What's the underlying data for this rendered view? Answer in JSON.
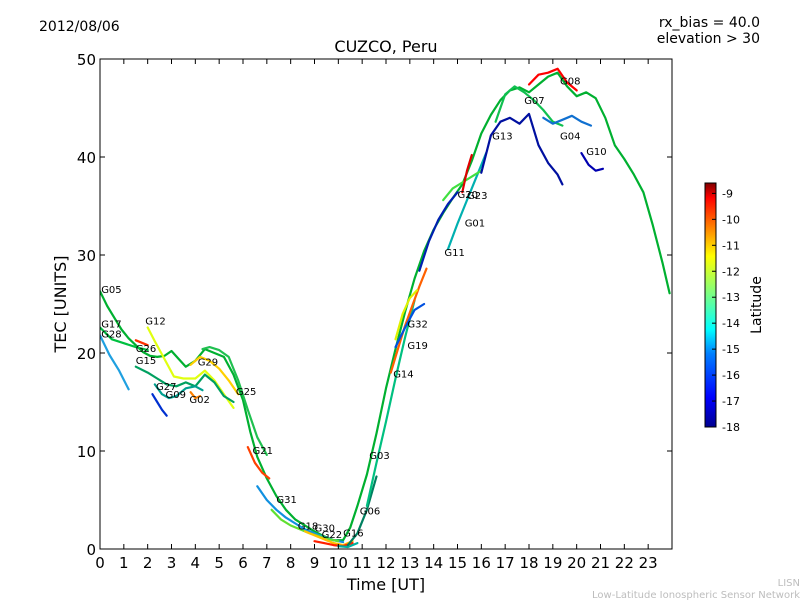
{
  "header": {
    "date": "2012/08/06",
    "bias_line": "rx_bias = 40.0",
    "elevation_line": "elevation > 30"
  },
  "watermark": {
    "short": "LISN",
    "long": "Low-Latitude Ionospheric Sensor Network"
  },
  "chart_data": {
    "type": "line",
    "title": "CUZCO, Peru",
    "xlabel": "Time [UT]",
    "ylabel": "TEC [UNITS]",
    "xlim": [
      0,
      24
    ],
    "ylim": [
      0,
      50
    ],
    "xticks": [
      "0",
      "1",
      "2",
      "3",
      "4",
      "5",
      "6",
      "7",
      "8",
      "9",
      "10",
      "11",
      "12",
      "13",
      "14",
      "15",
      "16",
      "17",
      "18",
      "19",
      "20",
      "21",
      "22",
      "23"
    ],
    "yticks": [
      "0",
      "10",
      "20",
      "30",
      "40",
      "50"
    ],
    "grid": false,
    "colorbar": {
      "label": "Latitude",
      "min": -18,
      "max": -8.6,
      "ticks": [
        "-9",
        "-10",
        "-11",
        "-12",
        "-13",
        "-14",
        "-15",
        "-16",
        "-17",
        "-18"
      ],
      "colors": [
        "#00008f",
        "#0000ff",
        "#007fff",
        "#00ffff",
        "#7fff7f",
        "#ffff00",
        "#ff7f00",
        "#ff0000",
        "#7f0000"
      ]
    },
    "series_lat_color": {
      "G05": "#00b030",
      "G17": "#00c040",
      "G28": "#20a0e0",
      "G12": "#e0ff10",
      "G26": "#ff3000",
      "G15": "#00a060",
      "G27": "#00a090",
      "G09": "#0030d0",
      "G02": "#ff8000",
      "G29": "#ffd000",
      "G25": "#20c050",
      "G21": "#ff4000",
      "G31": "#1090e0",
      "G18": "#60e030",
      "G30": "#ffc000",
      "G22": "#ff2000",
      "G16": "#00b0a0",
      "G06": "#008060",
      "G03": "#00c080",
      "G14": "#ff6000",
      "G19": "#0050e0",
      "G32": "#e0f000",
      "G11": "#0020b0",
      "G01": "#00b0b0",
      "G20": "#40e040",
      "G23": "#e00000",
      "G13": "#0010a0",
      "G07": "#10c050",
      "G08": "#ff0000",
      "G04": "#1070d0",
      "G10": "#0000b0"
    },
    "series": [
      {
        "name": "G05",
        "x": [
          0,
          0.3,
          0.6,
          0.9,
          1.2,
          1.5,
          1.8,
          2.1,
          2.4,
          2.7,
          3.0,
          3.3,
          3.6,
          4.0,
          4.4,
          4.8,
          5.2,
          5.6,
          6.0,
          6.3,
          6.6,
          7.0,
          7.4,
          7.8,
          8.2,
          8.6,
          9.0,
          9.4,
          9.8,
          10.2,
          10.5,
          10.8,
          11.2,
          11.6,
          12.0,
          12.4,
          12.8,
          13.2,
          13.6,
          14.0,
          14.4,
          14.8,
          15.2,
          15.6,
          16.0,
          16.4,
          16.8,
          17.2,
          17.6,
          18.0,
          18.4,
          18.8,
          19.2,
          19.6,
          20.0,
          20.4,
          20.8,
          21.2,
          21.6,
          22.0,
          22.4,
          22.8,
          23.2,
          23.6,
          23.9
        ],
        "values": [
          26.3,
          24.8,
          23.6,
          22.4,
          21.5,
          20.8,
          20.1,
          19.7,
          19.6,
          19.7,
          20.2,
          19.4,
          18.6,
          19.2,
          20.4,
          20.0,
          19.6,
          17.8,
          15.2,
          12.0,
          9.4,
          7.2,
          5.4,
          4.0,
          3.0,
          2.4,
          1.8,
          1.3,
          0.9,
          0.9,
          2.2,
          4.4,
          7.6,
          11.8,
          16.4,
          20.4,
          24.2,
          27.6,
          30.4,
          32.6,
          34.3,
          35.8,
          37.2,
          39.6,
          42.4,
          44.3,
          45.8,
          46.8,
          47.1,
          46.6,
          47.4,
          48.2,
          48.6,
          47.2,
          46.2,
          46.6,
          46.0,
          44.0,
          41.2,
          39.8,
          38.2,
          36.4,
          33.0,
          29.2,
          26.1
        ]
      },
      {
        "name": "G17",
        "x": [
          0,
          0.5,
          1.0,
          1.5,
          2.0
        ],
        "values": [
          22.6,
          21.4,
          21.0,
          20.6,
          20.3
        ]
      },
      {
        "name": "G28",
        "x": [
          0,
          0.4,
          0.8,
          1.2
        ],
        "values": [
          21.8,
          19.8,
          18.2,
          16.3
        ]
      },
      {
        "name": "G12",
        "x": [
          2.0,
          2.3,
          2.7,
          3.1,
          3.5,
          4.0,
          4.4,
          4.8,
          5.2,
          5.6
        ],
        "values": [
          22.6,
          21.2,
          19.4,
          17.6,
          17.4,
          17.4,
          18.2,
          17.2,
          15.8,
          14.4
        ]
      },
      {
        "name": "G26",
        "x": [
          1.5,
          1.8,
          2.0
        ],
        "values": [
          21.3,
          21.0,
          20.8
        ]
      },
      {
        "name": "G15",
        "x": [
          1.5,
          2.0,
          2.4,
          2.8,
          3.2,
          3.6,
          4.0,
          4.4,
          4.8,
          5.2,
          5.6
        ],
        "values": [
          18.6,
          18.0,
          17.4,
          16.8,
          16.6,
          17.0,
          16.6,
          17.8,
          17.0,
          15.6,
          15.0
        ]
      },
      {
        "name": "G27",
        "x": [
          2.3,
          2.6,
          2.9,
          3.2,
          3.6,
          4.0,
          4.3
        ],
        "values": [
          16.8,
          15.8,
          15.4,
          15.6,
          16.4,
          16.6,
          16.2
        ]
      },
      {
        "name": "G09",
        "x": [
          2.2,
          2.4,
          2.6,
          2.8
        ],
        "values": [
          15.8,
          15.0,
          14.2,
          13.6
        ]
      },
      {
        "name": "G02",
        "x": [
          3.8,
          4.0,
          4.2
        ],
        "values": [
          16.0,
          15.4,
          15.6
        ]
      },
      {
        "name": "G29",
        "x": [
          3.8,
          4.2,
          4.6,
          5.0,
          5.4,
          5.8
        ],
        "values": [
          18.8,
          19.6,
          19.2,
          18.4,
          17.2,
          15.8
        ]
      },
      {
        "name": "G25",
        "x": [
          4.3,
          4.6,
          5.0,
          5.4,
          5.8,
          6.2,
          6.6,
          7.0
        ],
        "values": [
          20.4,
          20.6,
          20.3,
          19.6,
          17.2,
          14.2,
          11.4,
          9.6
        ]
      },
      {
        "name": "G21",
        "x": [
          6.2,
          6.5,
          6.8,
          7.1
        ],
        "values": [
          10.4,
          8.8,
          7.8,
          7.2
        ]
      },
      {
        "name": "G31",
        "x": [
          6.6,
          7.0,
          7.4,
          7.8,
          8.2,
          8.6,
          9.0,
          9.4,
          9.8,
          10.2
        ],
        "values": [
          6.4,
          5.0,
          4.0,
          3.2,
          2.6,
          2.0,
          1.6,
          1.2,
          0.9,
          0.7
        ]
      },
      {
        "name": "G18",
        "x": [
          7.2,
          7.6,
          8.0,
          8.4,
          8.8,
          9.2,
          9.6,
          10.0
        ],
        "values": [
          4.0,
          3.0,
          2.4,
          2.0,
          1.6,
          1.3,
          1.0,
          0.8
        ]
      },
      {
        "name": "G30",
        "x": [
          8.6,
          9.0,
          9.4,
          9.8,
          10.2,
          10.6
        ],
        "values": [
          1.8,
          1.4,
          1.0,
          0.6,
          0.4,
          0.8
        ]
      },
      {
        "name": "G22",
        "x": [
          9.0,
          9.4,
          9.8,
          10.2,
          10.6
        ],
        "values": [
          0.8,
          0.6,
          0.4,
          0.3,
          0.6
        ]
      },
      {
        "name": "G16",
        "x": [
          10.0,
          10.4,
          10.8
        ],
        "values": [
          0.3,
          0.2,
          0.6
        ]
      },
      {
        "name": "G06",
        "x": [
          10.4,
          10.8,
          11.2,
          11.6
        ],
        "values": [
          0.4,
          1.6,
          4.0,
          7.4
        ]
      },
      {
        "name": "G03",
        "x": [
          11.2,
          11.6,
          12.0,
          12.4,
          12.8,
          13.2
        ],
        "values": [
          4.4,
          8.8,
          13.0,
          17.4,
          21.6,
          25.4
        ]
      },
      {
        "name": "G14",
        "x": [
          12.2,
          12.5,
          12.8,
          13.1,
          13.4,
          13.7
        ],
        "values": [
          18.0,
          20.4,
          22.8,
          24.8,
          26.8,
          28.6
        ]
      },
      {
        "name": "G19",
        "x": [
          12.4,
          12.8,
          13.2,
          13.6
        ],
        "values": [
          20.6,
          22.6,
          24.4,
          25.0
        ]
      },
      {
        "name": "G32",
        "x": [
          12.4,
          12.7,
          13.0,
          13.3
        ],
        "values": [
          21.4,
          24.0,
          25.6,
          26.4
        ]
      },
      {
        "name": "G11",
        "x": [
          13.4,
          13.8,
          14.2,
          14.6,
          15.0
        ],
        "values": [
          28.4,
          31.4,
          33.6,
          35.2,
          36.4
        ]
      },
      {
        "name": "G01",
        "x": [
          14.6,
          15.0,
          15.4,
          15.8,
          16.2
        ],
        "values": [
          30.6,
          33.2,
          35.6,
          38.0,
          40.4
        ]
      },
      {
        "name": "G20",
        "x": [
          14.4,
          14.8,
          15.2,
          15.6,
          16.0
        ],
        "values": [
          35.6,
          36.8,
          37.4,
          38.0,
          38.6
        ]
      },
      {
        "name": "G23",
        "x": [
          15.2,
          15.4,
          15.6
        ],
        "values": [
          36.4,
          38.6,
          40.2
        ]
      },
      {
        "name": "G13",
        "x": [
          16.0,
          16.4,
          16.8,
          17.2,
          17.6,
          18.0,
          18.4,
          18.8,
          19.2,
          19.4
        ],
        "values": [
          38.4,
          42.2,
          43.6,
          44.0,
          43.4,
          44.4,
          41.2,
          39.4,
          38.2,
          37.2
        ]
      },
      {
        "name": "G07",
        "x": [
          16.6,
          17.0,
          17.4,
          17.8,
          18.2,
          18.6,
          19.0,
          19.4
        ],
        "values": [
          43.6,
          46.4,
          47.2,
          46.6,
          45.8,
          44.8,
          43.6,
          43.2
        ]
      },
      {
        "name": "G08",
        "x": [
          18.0,
          18.4,
          18.8,
          19.2,
          19.6,
          20.0
        ],
        "values": [
          47.4,
          48.4,
          48.6,
          49.0,
          47.6,
          46.8
        ]
      },
      {
        "name": "G04",
        "x": [
          18.6,
          19.0,
          19.4,
          19.8,
          20.2,
          20.6
        ],
        "values": [
          44.0,
          43.4,
          43.8,
          44.2,
          43.6,
          43.2
        ]
      },
      {
        "name": "G10",
        "x": [
          20.2,
          20.5,
          20.8,
          21.1
        ],
        "values": [
          40.4,
          39.2,
          38.6,
          38.8
        ]
      }
    ],
    "labels": [
      {
        "text": "G05",
        "x": 0.05,
        "y": 26.1
      },
      {
        "text": "G17",
        "x": 0.05,
        "y": 22.6
      },
      {
        "text": "G28",
        "x": 0.05,
        "y": 21.6
      },
      {
        "text": "G12",
        "x": 1.9,
        "y": 22.9
      },
      {
        "text": "G26",
        "x": 1.5,
        "y": 20.1
      },
      {
        "text": "G15",
        "x": 1.5,
        "y": 18.9
      },
      {
        "text": "G27",
        "x": 2.35,
        "y": 16.2
      },
      {
        "text": "G09",
        "x": 2.75,
        "y": 15.4
      },
      {
        "text": "G02",
        "x": 3.75,
        "y": 14.9
      },
      {
        "text": "G29",
        "x": 4.1,
        "y": 18.7
      },
      {
        "text": "G25",
        "x": 5.7,
        "y": 15.7
      },
      {
        "text": "G21",
        "x": 6.4,
        "y": 9.7
      },
      {
        "text": "G31",
        "x": 7.4,
        "y": 4.7
      },
      {
        "text": "G18",
        "x": 8.3,
        "y": 2.0
      },
      {
        "text": "G30",
        "x": 9.0,
        "y": 1.8
      },
      {
        "text": "G22",
        "x": 9.3,
        "y": 1.1
      },
      {
        "text": "G16",
        "x": 10.2,
        "y": 1.3
      },
      {
        "text": "G06",
        "x": 10.9,
        "y": 3.5
      },
      {
        "text": "G03",
        "x": 11.3,
        "y": 9.2
      },
      {
        "text": "G14",
        "x": 12.3,
        "y": 17.5
      },
      {
        "text": "G19",
        "x": 12.9,
        "y": 20.4
      },
      {
        "text": "G32",
        "x": 12.9,
        "y": 22.6
      },
      {
        "text": "G11",
        "x": 14.45,
        "y": 29.9
      },
      {
        "text": "G01",
        "x": 15.3,
        "y": 32.9
      },
      {
        "text": "G20",
        "x": 15.0,
        "y": 35.8
      },
      {
        "text": "G23",
        "x": 15.4,
        "y": 35.7
      },
      {
        "text": "G13",
        "x": 16.45,
        "y": 41.8
      },
      {
        "text": "G07",
        "x": 17.8,
        "y": 45.4
      },
      {
        "text": "G08",
        "x": 19.3,
        "y": 47.4
      },
      {
        "text": "G04",
        "x": 19.3,
        "y": 41.8
      },
      {
        "text": "G10",
        "x": 20.4,
        "y": 40.2
      }
    ]
  }
}
